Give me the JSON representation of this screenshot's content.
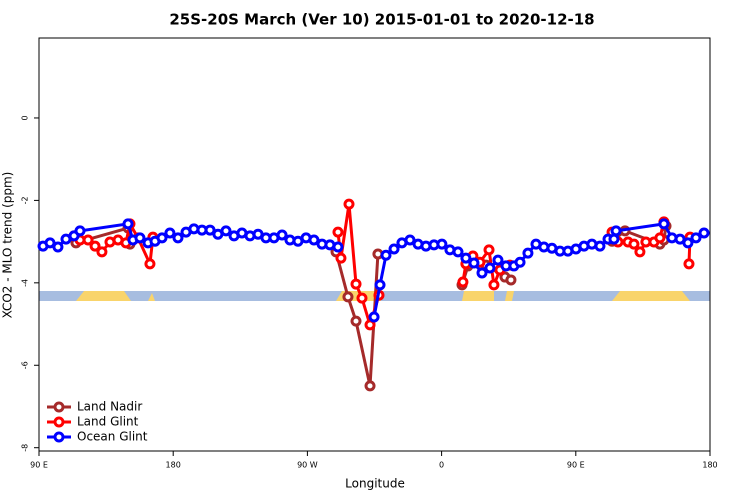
{
  "chart_data": {
    "type": "line",
    "title": "25S-20S March (Ver 10)   2015-01-01 to 2020-12-18",
    "x_label": "Longitude",
    "y_label": "XCO2 - MLO trend (ppm)",
    "xlim": [
      90,
      540
    ],
    "ylim": [
      -8.08,
      1.94
    ],
    "xticks": [
      {
        "value": 90,
        "label": "90 E"
      },
      180,
      {
        "value": 270,
        "label": "90 W"
      },
      {
        "value": 360,
        "label": "0"
      },
      {
        "value": 450,
        "label": "90 E"
      },
      {
        "value": 540,
        "label": "180"
      }
    ],
    "yticks": [
      0,
      -2,
      -4,
      -6,
      -8
    ],
    "legend": "bottom-left",
    "series": [
      {
        "name": "Land Nadir",
        "color": "#a52a2a",
        "x": [
          114.8,
          149.7,
          151.0,
          null,
          289.2,
          297.2,
          302.6,
          312.0,
          317.3,
          null,
          373.7,
          377.7,
          389.8,
          402.5,
          406.5,
          null,
          474.3,
          483.0,
          506.4,
          509.1,
          510.5
        ],
        "values": [
          -3.03,
          -2.67,
          -3.06,
          null,
          -3.25,
          -4.34,
          -4.93,
          -6.5,
          -3.3,
          null,
          -4.05,
          -3.59,
          -3.57,
          -3.86,
          -3.93,
          null,
          -2.99,
          -2.74,
          -3.06,
          -2.96,
          -2.62
        ]
      },
      {
        "name": "Land Glint",
        "color": "#ff0000",
        "x": [
          113.5,
          117.5,
          122.9,
          127.6,
          132.2,
          137.6,
          143.0,
          148.3,
          151.0,
          156.4,
          164.4,
          166.4,
          null,
          290.5,
          292.5,
          297.9,
          302.6,
          306.6,
          312.0,
          318.0,
          null,
          374.3,
          376.3,
          381.0,
          385.7,
          391.8,
          395.1,
          399.1,
          405.8,
          null,
          474.3,
          478.3,
          485.0,
          489.0,
          493.0,
          497.0,
          502.4,
          506.4,
          509.1,
          null,
          525.9,
          526.6
        ],
        "values": [
          -2.86,
          -2.96,
          -2.96,
          -3.11,
          -3.25,
          -3.01,
          -2.96,
          -3.03,
          -2.57,
          -2.91,
          -3.54,
          -2.89,
          null,
          -2.77,
          -3.4,
          -2.09,
          -4.03,
          -4.37,
          -5.02,
          -4.3,
          null,
          -3.98,
          -3.54,
          -3.35,
          -3.5,
          -3.2,
          -4.05,
          -3.69,
          -3.57,
          null,
          -2.77,
          -3.01,
          -3.01,
          -3.06,
          -3.25,
          -3.01,
          -3.01,
          -2.91,
          -2.52,
          null,
          -3.54,
          -2.89
        ]
      },
      {
        "name": "Ocean Glint",
        "color": "#0000ff",
        "x": [
          92.7,
          97.4,
          102.7,
          108.1,
          113.5,
          117.5,
          149.7,
          153.0,
          157.7,
          163.1,
          167.8,
          172.5,
          177.8,
          183.2,
          188.6,
          193.9,
          199.3,
          204.7,
          210.0,
          215.4,
          220.8,
          226.1,
          231.5,
          236.9,
          242.2,
          247.6,
          253.0,
          258.3,
          263.7,
          269.1,
          274.4,
          279.8,
          285.1,
          290.5,
          null,
          314.7,
          318.7,
          322.7,
          328.1,
          333.4,
          338.8,
          344.2,
          349.5,
          354.9,
          360.2,
          365.6,
          371.0,
          376.3,
          381.7,
          387.1,
          392.4,
          397.8,
          403.2,
          408.5,
          412.6,
          417.9,
          423.3,
          428.6,
          434.0,
          439.4,
          444.7,
          450.1,
          455.5,
          460.8,
          466.2,
          471.6,
          475.6,
          477.0,
          509.1,
          514.5,
          519.9,
          525.2,
          530.6,
          536.0
        ],
        "values": [
          -3.11,
          -3.03,
          -3.13,
          -2.94,
          -2.86,
          -2.74,
          -2.57,
          -2.96,
          -2.91,
          -3.03,
          -2.99,
          -2.91,
          -2.79,
          -2.91,
          -2.77,
          -2.69,
          -2.72,
          -2.72,
          -2.82,
          -2.74,
          -2.86,
          -2.79,
          -2.86,
          -2.82,
          -2.91,
          -2.91,
          -2.84,
          -2.96,
          -2.99,
          -2.91,
          -2.96,
          -3.06,
          -3.08,
          -3.13,
          null,
          -4.83,
          -4.05,
          -3.33,
          -3.18,
          -3.03,
          -2.96,
          -3.06,
          -3.11,
          -3.08,
          -3.06,
          -3.2,
          -3.25,
          -3.4,
          -3.52,
          -3.76,
          -3.64,
          -3.45,
          -3.59,
          -3.59,
          -3.5,
          -3.28,
          -3.06,
          -3.13,
          -3.16,
          -3.23,
          -3.23,
          -3.18,
          -3.11,
          -3.06,
          -3.11,
          -2.94,
          -2.94,
          -2.74,
          -2.57,
          -2.91,
          -2.94,
          -3.03,
          -2.91,
          -2.79
        ]
      }
    ]
  }
}
